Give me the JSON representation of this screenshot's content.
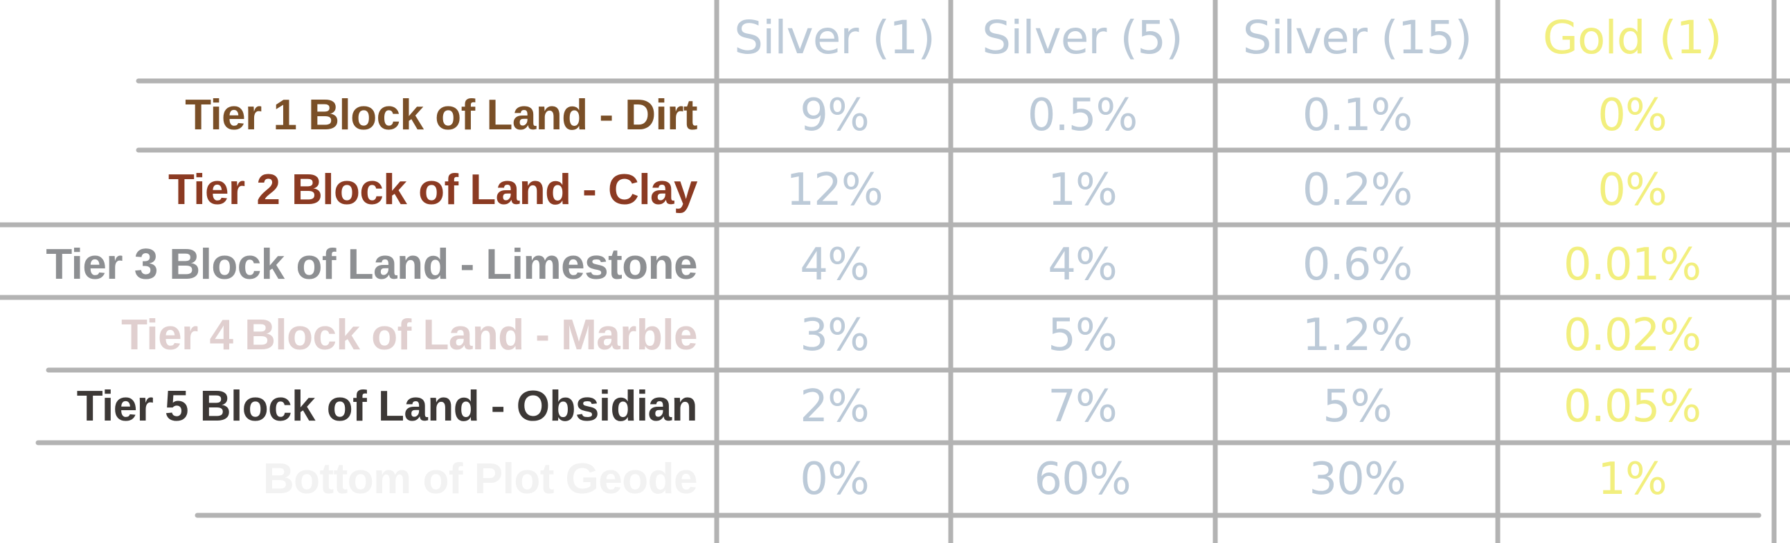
{
  "colors": {
    "grid": "#b3b3b3",
    "silver": "#bccad8",
    "gold": "#f2ef7e"
  },
  "table": {
    "columns": [
      {
        "label": "Silver (1)",
        "color": "#bccad8"
      },
      {
        "label": "Silver (5)",
        "color": "#bccad8"
      },
      {
        "label": "Silver (15)",
        "color": "#bccad8"
      },
      {
        "label": "Gold (1)",
        "color": "#f2ef7e"
      }
    ],
    "rows": [
      {
        "label": "Tier 1 Block of Land - Dirt",
        "color": "#7a4f27",
        "values": [
          "9%",
          "0.5%",
          "0.1%",
          "0%"
        ]
      },
      {
        "label": "Tier 2 Block of Land - Clay",
        "color": "#8b3a22",
        "values": [
          "12%",
          "1%",
          "0.2%",
          "0%"
        ]
      },
      {
        "label": "Tier 3 Block of Land - Limestone",
        "color": "#8d8f92",
        "values": [
          "4%",
          "4%",
          "0.6%",
          "0.01%"
        ]
      },
      {
        "label": "Tier 4 Block of Land - Marble",
        "color": "#e0cfcf",
        "values": [
          "3%",
          "5%",
          "1.2%",
          "0.02%"
        ]
      },
      {
        "label": "Tier 5 Block of Land - Obsidian",
        "color": "#3c3836",
        "values": [
          "2%",
          "7%",
          "5%",
          "0.05%"
        ]
      },
      {
        "label": "Bottom of Plot Geode",
        "color": "#f2f2f2",
        "values": [
          "0%",
          "60%",
          "30%",
          "1%"
        ]
      }
    ]
  }
}
